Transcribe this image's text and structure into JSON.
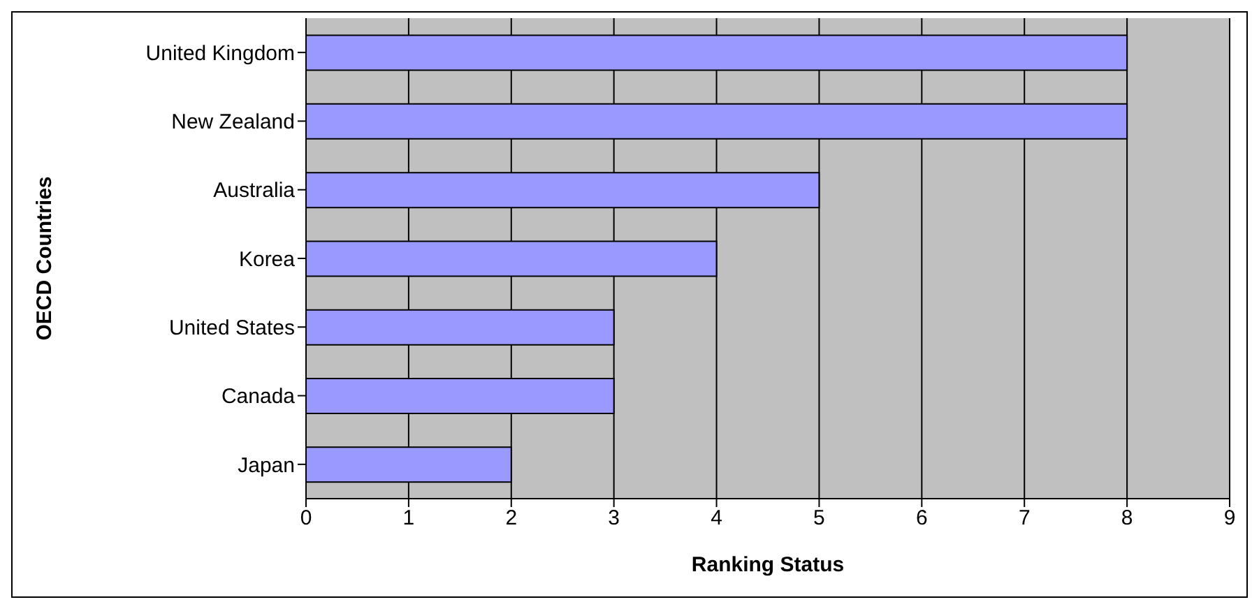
{
  "chart_data": {
    "type": "bar",
    "orientation": "horizontal",
    "xlabel": "Ranking Status",
    "ylabel": "OECD Countries",
    "categories": [
      "United Kingdom",
      "New Zealand",
      "Australia",
      "Korea",
      "United States",
      "Canada",
      "Japan"
    ],
    "values": [
      8,
      8,
      5,
      4,
      3,
      3,
      2
    ],
    "color": "#9999ff",
    "xlim": [
      0,
      9
    ],
    "xticks": [
      0,
      1,
      2,
      3,
      4,
      5,
      6,
      7,
      8,
      9
    ],
    "grid": "x"
  }
}
